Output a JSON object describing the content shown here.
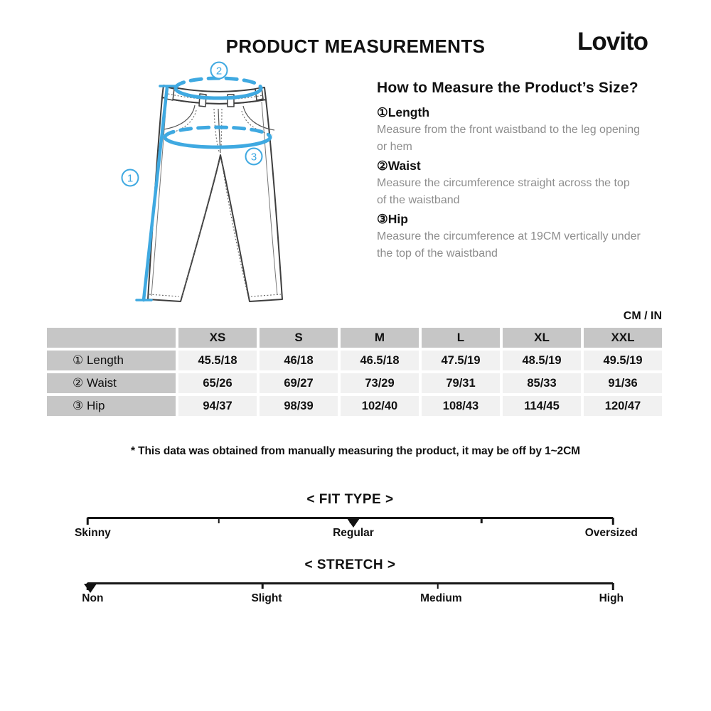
{
  "page": {
    "title": "PRODUCT MEASUREMENTS",
    "brand": "Lovito"
  },
  "diagram": {
    "length_label": "1",
    "waist_label": "2",
    "hip_label": "3"
  },
  "how_to": {
    "heading": "How to Measure the Product’s Size?",
    "items": [
      {
        "term": "①Length",
        "desc": "Measure from the front waistband to the leg opening or hem"
      },
      {
        "term": "②Waist",
        "desc": "Measure the circumference straight across the top of the waistband"
      },
      {
        "term": "③Hip",
        "desc": "Measure the circumference at 19CM vertically under the top of the waistband"
      }
    ]
  },
  "table": {
    "unit_label": "CM / IN",
    "headers": [
      "",
      "XS",
      "S",
      "M",
      "L",
      "XL",
      "XXL"
    ],
    "rows": [
      {
        "label": "① Length",
        "values": [
          "45.5/18",
          "46/18",
          "46.5/18",
          "47.5/19",
          "48.5/19",
          "49.5/19"
        ]
      },
      {
        "label": "② Waist",
        "values": [
          "65/26",
          "69/27",
          "73/29",
          "79/31",
          "85/33",
          "91/36"
        ]
      },
      {
        "label": "③ Hip",
        "values": [
          "94/37",
          "98/39",
          "102/40",
          "108/43",
          "114/45",
          "120/47"
        ]
      }
    ]
  },
  "disclaimer": "* This data was obtained from manually measuring the product, it may be off by 1~2CM",
  "scales": [
    {
      "id": "fit-type",
      "title": "< FIT TYPE >",
      "ticks_percent": [
        0,
        25,
        50,
        75,
        100
      ],
      "marker_percent": 50.6,
      "selected": "Regular",
      "labels": [
        {
          "text": "Skinny",
          "percent": 1
        },
        {
          "text": "Regular",
          "percent": 50.6
        },
        {
          "text": "Oversized",
          "percent": 99.7
        }
      ]
    },
    {
      "id": "stretch",
      "title": "< STRETCH >",
      "ticks_percent": [
        0,
        33.33,
        66.67,
        100
      ],
      "marker_percent": 0.5,
      "selected": "Non",
      "labels": [
        {
          "text": "Non",
          "percent": 1
        },
        {
          "text": "Slight",
          "percent": 34.1
        },
        {
          "text": "Medium",
          "percent": 67.3
        },
        {
          "text": "High",
          "percent": 99.7
        }
      ]
    }
  ],
  "colors": {
    "accent_cyan": "#3FA9E1",
    "table_header_bg": "#c6c6c6",
    "table_cell_bg": "#f1f1f1",
    "text_gray": "#8d8d8d"
  }
}
